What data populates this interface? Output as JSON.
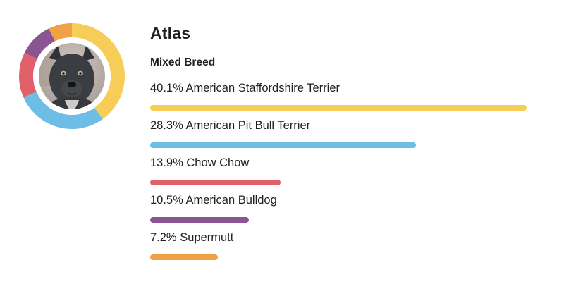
{
  "profile": {
    "name": "Atlas",
    "breed_type": "Mixed Breed",
    "photo_icon": "dog-photo-icon"
  },
  "chart_data": {
    "type": "bar",
    "orientation": "horizontal",
    "categories": [
      "American Staffordshire Terrier",
      "American Pit Bull Terrier",
      "Chow Chow",
      "American Bulldog",
      "Supermutt"
    ],
    "values": [
      40.1,
      28.3,
      13.9,
      10.5,
      7.2
    ],
    "value_labels": [
      "40.1%",
      "28.3%",
      "13.9%",
      "10.5%",
      "7.2%"
    ],
    "unit": "%",
    "colors": [
      "#f5cd57",
      "#6dbde6",
      "#e0616a",
      "#8a5592",
      "#f0a143"
    ],
    "donut": {
      "values": [
        40.1,
        28.3,
        13.9,
        10.5,
        7.2
      ],
      "colors": [
        "#f5cd57",
        "#6dbde6",
        "#e0616a",
        "#8a5592",
        "#f0a143"
      ]
    },
    "xlim": [
      0,
      40.1
    ],
    "grid": false,
    "legend": "none"
  }
}
